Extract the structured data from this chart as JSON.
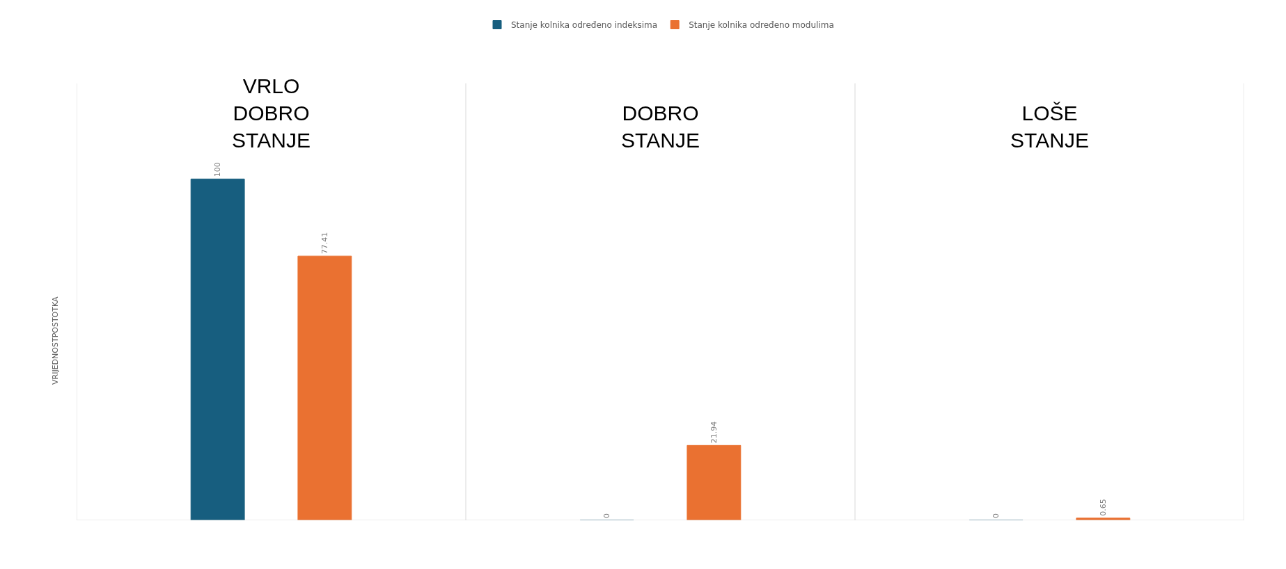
{
  "chart_data": {
    "type": "bar",
    "ylabel": "VRIJEDNOSTPOSTOTKA",
    "categories": [
      "VRLO DOBRO STANJE",
      "DOBRO STANJE",
      "LOŠE STANJE"
    ],
    "series": [
      {
        "name": "Stanje kolnika određeno indeksima",
        "color": "#175e7f",
        "values": [
          100,
          0,
          0
        ]
      },
      {
        "name": "Stanje kolnika određeno modulima",
        "color": "#ea7131",
        "values": [
          77.41,
          21.94,
          0.65
        ]
      }
    ],
    "tick_labels": "x",
    "data_labels": true,
    "grid": "x",
    "legend": "top"
  }
}
